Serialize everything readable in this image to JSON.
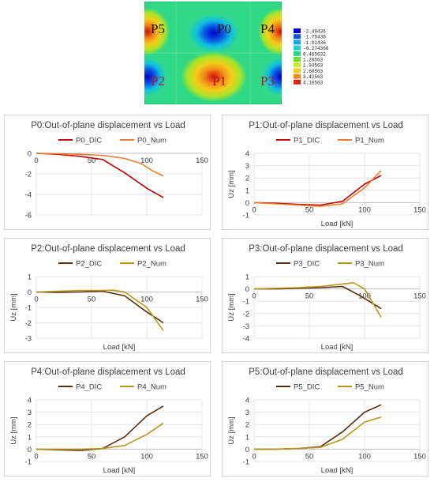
{
  "contour": {
    "labels": [
      {
        "text": "P5",
        "color": "#111111"
      },
      {
        "text": "P0",
        "color": "#111111"
      },
      {
        "text": "P4",
        "color": "#111111"
      },
      {
        "text": "P2",
        "color": "#b01818"
      },
      {
        "text": "P1",
        "color": "#b01818"
      },
      {
        "text": "P3",
        "color": "#b01818"
      }
    ],
    "legend": {
      "values": [
        "-2.49436",
        "-1.75436",
        "-1.01436",
        "-0.274366",
        "0.465632",
        "1.20563",
        "1.94563",
        "2.68563",
        "3.42563",
        "4.16563"
      ],
      "colors": [
        "#0000c8",
        "#0a57e6",
        "#12a3ea",
        "#1ad1c8",
        "#25d87a",
        "#6ee02c",
        "#c8e622",
        "#f2cf1a",
        "#f5891a",
        "#e51c10"
      ]
    }
  },
  "chart_data": [
    {
      "type": "line",
      "title": "P0:Out-of-plane displacement vs Load",
      "xlabel": "",
      "ylabel": "",
      "xlim": [
        0,
        150
      ],
      "ylim": [
        -6,
        0
      ],
      "xticks": [
        "0",
        "50",
        "100",
        "150"
      ],
      "xtick_values": [
        0,
        50,
        100,
        150
      ],
      "yticks": [
        "0",
        "-2",
        "-4",
        "-6"
      ],
      "ytick_values": [
        0,
        -2,
        -4,
        -6
      ],
      "series": [
        {
          "name": "P0_DIC",
          "color": "#c00000",
          "x": [
            0,
            20,
            40,
            60,
            80,
            100,
            115
          ],
          "y": [
            0,
            -0.1,
            -0.3,
            -0.6,
            -1.9,
            -3.4,
            -4.3
          ]
        },
        {
          "name": "P0_Num",
          "color": "#ed7d31",
          "x": [
            0,
            20,
            40,
            60,
            80,
            95,
            105,
            115
          ],
          "y": [
            0,
            -0.05,
            -0.1,
            -0.2,
            -0.5,
            -1.0,
            -1.7,
            -2.2
          ]
        }
      ]
    },
    {
      "type": "line",
      "title": "P1:Out-of-plane displacement vs Load",
      "xlabel": "Load [kN]",
      "ylabel": "Uz [mm]",
      "xlim": [
        0,
        150
      ],
      "ylim": [
        -1,
        4
      ],
      "xticks": [
        "0",
        "50",
        "100",
        "150"
      ],
      "xtick_values": [
        0,
        50,
        100,
        150
      ],
      "yticks": [
        "4",
        "3",
        "2",
        "1",
        "0",
        "-1"
      ],
      "ytick_values": [
        4,
        3,
        2,
        1,
        0,
        -1
      ],
      "series": [
        {
          "name": "P1_DIC",
          "color": "#c00000",
          "x": [
            0,
            20,
            40,
            60,
            80,
            100,
            115
          ],
          "y": [
            0,
            -0.05,
            -0.15,
            -0.2,
            0.1,
            1.5,
            2.2
          ]
        },
        {
          "name": "P1_Num",
          "color": "#ed7d31",
          "x": [
            0,
            20,
            40,
            60,
            80,
            100,
            115
          ],
          "y": [
            0,
            -0.1,
            -0.2,
            -0.3,
            -0.1,
            1.2,
            2.6
          ]
        }
      ]
    },
    {
      "type": "line",
      "title": "P2:Out-of-plane displacement vs Load",
      "xlabel": "Load [kN]",
      "ylabel": "Uz [mm]",
      "xlim": [
        0,
        150
      ],
      "ylim": [
        -3,
        1
      ],
      "xticks": [
        "0",
        "50",
        "100",
        "150"
      ],
      "xtick_values": [
        0,
        50,
        100,
        150
      ],
      "yticks": [
        "1",
        "0",
        "-1",
        "-2",
        "-3"
      ],
      "ytick_values": [
        1,
        0,
        -1,
        -2,
        -3
      ],
      "series": [
        {
          "name": "P2_DIC",
          "color": "#5a2d0c",
          "x": [
            0,
            20,
            40,
            60,
            80,
            100,
            115
          ],
          "y": [
            0,
            -0.02,
            0,
            0.05,
            -0.25,
            -1.3,
            -2.0
          ]
        },
        {
          "name": "P2_Num",
          "color": "#b7951e",
          "x": [
            0,
            20,
            40,
            60,
            70,
            80,
            100,
            115
          ],
          "y": [
            0,
            0.05,
            0.1,
            0.1,
            0.12,
            0,
            -1.0,
            -2.5
          ]
        }
      ]
    },
    {
      "type": "line",
      "title": "P3:Out-of-plane displacement vs Load",
      "xlabel": "Load [kN]",
      "ylabel": "Uz [mm]",
      "xlim": [
        0,
        150
      ],
      "ylim": [
        -4,
        1
      ],
      "xticks": [
        "0",
        "50",
        "100",
        "150"
      ],
      "xtick_values": [
        0,
        50,
        100,
        150
      ],
      "yticks": [
        "1",
        "0",
        "-1",
        "-2",
        "-3",
        "-4"
      ],
      "ytick_values": [
        1,
        0,
        -1,
        -2,
        -3,
        -4
      ],
      "series": [
        {
          "name": "P3_DIC",
          "color": "#5a2d0c",
          "x": [
            0,
            20,
            40,
            60,
            80,
            95,
            115
          ],
          "y": [
            0,
            0,
            0.05,
            0.1,
            0.2,
            -0.5,
            -1.6
          ]
        },
        {
          "name": "P3_Num",
          "color": "#b7951e",
          "x": [
            0,
            20,
            40,
            60,
            80,
            90,
            100,
            115
          ],
          "y": [
            0,
            0.05,
            0.1,
            0.2,
            0.4,
            0.5,
            0,
            -2.3
          ]
        }
      ]
    },
    {
      "type": "line",
      "title": "P4:Out-of-plane displacement vs Load",
      "xlabel": "Load [kN]",
      "ylabel": "Uz [mm]",
      "xlim": [
        0,
        150
      ],
      "ylim": [
        -1,
        4
      ],
      "xticks": [
        "0",
        "50",
        "100",
        "150"
      ],
      "xtick_values": [
        0,
        50,
        100,
        150
      ],
      "yticks": [
        "4",
        "3",
        "2",
        "1",
        "0",
        "-1"
      ],
      "ytick_values": [
        4,
        3,
        2,
        1,
        0,
        -1
      ],
      "series": [
        {
          "name": "P4_DIC",
          "color": "#5a2d0c",
          "x": [
            0,
            20,
            40,
            60,
            80,
            100,
            115
          ],
          "y": [
            0,
            -0.05,
            -0.1,
            0.05,
            1.0,
            2.7,
            3.5
          ]
        },
        {
          "name": "P4_Num",
          "color": "#b7951e",
          "x": [
            0,
            20,
            40,
            60,
            80,
            100,
            115
          ],
          "y": [
            0,
            0,
            0,
            0.05,
            0.3,
            1.2,
            2.1
          ]
        }
      ]
    },
    {
      "type": "line",
      "title": "P5:Out-of-plane displacement vs Load",
      "xlabel": "Load [kN]",
      "ylabel": "Uz [mm]",
      "xlim": [
        0,
        150
      ],
      "ylim": [
        -1,
        4
      ],
      "xticks": [
        "0",
        "50",
        "100",
        "150"
      ],
      "xtick_values": [
        0,
        50,
        100,
        150
      ],
      "yticks": [
        "4",
        "3",
        "2",
        "1",
        "0",
        "-1"
      ],
      "ytick_values": [
        4,
        3,
        2,
        1,
        0,
        -1
      ],
      "series": [
        {
          "name": "P5_DIC",
          "color": "#5a2d0c",
          "x": [
            0,
            20,
            40,
            60,
            80,
            100,
            115
          ],
          "y": [
            0,
            0,
            0.05,
            0.2,
            1.4,
            3.0,
            3.6
          ]
        },
        {
          "name": "P5_Num",
          "color": "#b7951e",
          "x": [
            0,
            20,
            40,
            60,
            80,
            100,
            115
          ],
          "y": [
            0,
            0,
            0.05,
            0.15,
            0.8,
            2.2,
            2.6
          ]
        }
      ]
    }
  ]
}
